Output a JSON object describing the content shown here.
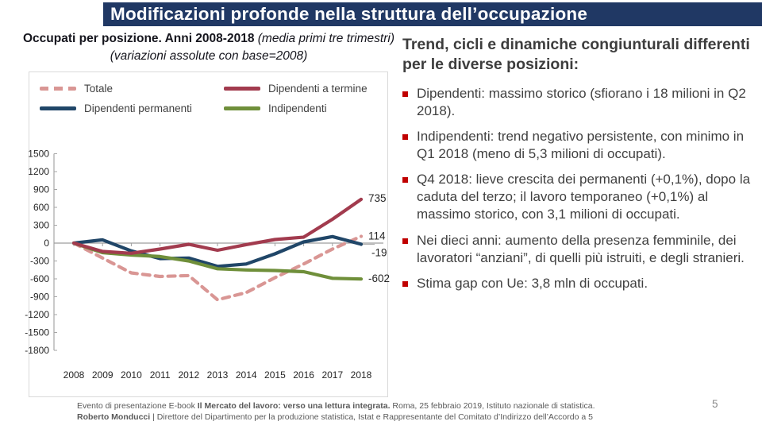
{
  "slide": {
    "title": "Modificazioni profonde nella struttura dell’occupazione",
    "page_number": "5"
  },
  "chart": {
    "title_runs": [
      {
        "text": "Occupati per posizione. Anni 2008-2018 ",
        "style": "b"
      },
      {
        "text": "(media primi tre trimestri) (variazioni assolute con base=2008)",
        "style": "i"
      }
    ],
    "legend_order": [
      "Totale",
      "Dipendenti a termine",
      "Dipendenti permanenti",
      "Indipendenti"
    ]
  },
  "chart_data": {
    "type": "line",
    "title": "Occupati per posizione. Anni 2008-2018 (media primi tre trimestri) (variazioni assolute con base=2008)",
    "xlabel": "",
    "ylabel": "",
    "x": [
      2008,
      2009,
      2010,
      2011,
      2012,
      2013,
      2014,
      2015,
      2016,
      2017,
      2018
    ],
    "ylim": [
      -1800,
      1500
    ],
    "ytick_step": 300,
    "grid": "zero-line-only",
    "legend_position": "top",
    "series": [
      {
        "name": "Totale",
        "color": "#d99694",
        "dash": true,
        "values": [
          0,
          -250,
          -500,
          -560,
          -545,
          -950,
          -830,
          -580,
          -350,
          -100,
          114
        ],
        "end_label": "114"
      },
      {
        "name": "Dipendenti permanenti",
        "color": "#204668",
        "dash": false,
        "values": [
          0,
          55,
          -130,
          -260,
          -250,
          -390,
          -350,
          -180,
          20,
          110,
          -19
        ],
        "end_label": "-19"
      },
      {
        "name": "Indipendenti",
        "color": "#6f8f3a",
        "dash": false,
        "values": [
          0,
          -160,
          -200,
          -225,
          -300,
          -430,
          -450,
          -460,
          -480,
          -590,
          -602
        ],
        "end_label": "-602"
      },
      {
        "name": "Dipendenti a termine",
        "color": "#a23b4e",
        "dash": false,
        "values": [
          0,
          -140,
          -170,
          -100,
          -20,
          -120,
          -25,
          60,
          100,
          400,
          735
        ],
        "end_label": "735"
      }
    ]
  },
  "right_panel": {
    "heading": "Trend, cicli e dinamiche congiunturali differenti per le diverse posizioni:",
    "bullets": [
      "Dipendenti: massimo storico (sfiorano i 18 milioni in Q2 2018).",
      "Indipendenti: trend negativo persistente, con minimo in Q1 2018 (meno di 5,3 milioni di occupati).",
      "Q4 2018: lieve crescita dei permanenti (+0,1%), dopo la caduta del terzo; il lavoro temporaneo (+0,1%) al massimo storico, con 3,1 milioni di occupati.",
      "Nei dieci anni: aumento della presenza femminile, dei lavoratori “anziani”, di quelli più istruiti, e degli stranieri.",
      "Stima gap con Ue: 3,8 mln di occupati."
    ]
  },
  "footer": {
    "line1_runs": [
      {
        "text": "Evento di presentazione E-book ",
        "style": ""
      },
      {
        "text": "Il Mercato del lavoro: verso una lettura integrata.",
        "style": "b"
      },
      {
        "text": " Roma, 25 febbraio 2019, Istituto nazionale di statistica.",
        "style": ""
      }
    ],
    "line2_runs": [
      {
        "text": "Roberto Monducci",
        "style": "b"
      },
      {
        "text": " | Direttore del Dipartimento per la produzione statistica, Istat e Rappresentante del Comitato d’Indirizzo dell’Accordo a 5",
        "style": ""
      }
    ]
  },
  "colors": {
    "title_bar": "#203864",
    "bullet_marker": "#c00000",
    "axis": "#a6a6a6",
    "tick_text": "#262626",
    "body_text": "#404040",
    "footer_text": "#595959"
  }
}
